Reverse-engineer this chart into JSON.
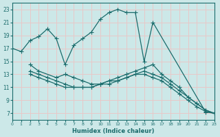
{
  "xlabel": "Humidex (Indice chaleur)",
  "xlim": [
    0,
    23
  ],
  "ylim": [
    6,
    24
  ],
  "yticks": [
    7,
    9,
    11,
    13,
    15,
    17,
    19,
    21,
    23
  ],
  "xticks": [
    0,
    1,
    2,
    3,
    4,
    5,
    6,
    7,
    8,
    9,
    10,
    11,
    12,
    13,
    14,
    15,
    16,
    17,
    18,
    19,
    20,
    21,
    22,
    23
  ],
  "background_color": "#cce8e8",
  "line_color": "#1a6b6b",
  "grid_color": "#e8c8c8",
  "curve1": {
    "x": [
      0,
      1,
      2,
      3,
      4,
      5,
      6,
      7,
      8,
      9,
      10,
      11,
      12,
      13,
      14,
      15,
      16,
      22,
      23
    ],
    "y": [
      17.0,
      16.5,
      18.2,
      18.8,
      20.0,
      18.5,
      14.5,
      17.5,
      18.5,
      19.5,
      21.5,
      22.5,
      23.0,
      22.5,
      22.5,
      15.0,
      21.0,
      7.2,
      7.0
    ]
  },
  "curve2": {
    "x": [
      2,
      3,
      5,
      6,
      7,
      8,
      9,
      10,
      11,
      12,
      13,
      14,
      15,
      16,
      17,
      18,
      19,
      20,
      21,
      22,
      23
    ],
    "y": [
      14.5,
      13.5,
      12.5,
      13.0,
      12.5,
      12.0,
      11.5,
      11.5,
      12.0,
      12.5,
      13.0,
      13.5,
      14.0,
      14.5,
      13.0,
      12.0,
      11.0,
      9.5,
      8.5,
      7.5,
      7.0
    ]
  },
  "curve3": {
    "x": [
      2,
      3,
      4,
      5,
      6,
      7,
      8,
      9,
      10,
      11,
      12,
      13,
      14,
      15,
      16,
      17,
      18,
      19,
      20,
      21,
      22,
      23
    ],
    "y": [
      13.5,
      13.0,
      12.5,
      12.0,
      11.5,
      11.0,
      11.0,
      11.0,
      11.5,
      12.0,
      12.0,
      12.5,
      13.0,
      13.5,
      13.0,
      12.5,
      11.5,
      10.5,
      9.5,
      8.5,
      7.5,
      7.0
    ]
  },
  "curve4": {
    "x": [
      2,
      3,
      4,
      5,
      6,
      7,
      8,
      9,
      10,
      11,
      12,
      13,
      14,
      15,
      16,
      17,
      18,
      19,
      20,
      21,
      22,
      23
    ],
    "y": [
      13.0,
      12.5,
      12.0,
      11.5,
      11.0,
      11.0,
      11.0,
      11.0,
      11.5,
      11.5,
      12.0,
      12.5,
      13.0,
      13.0,
      12.5,
      12.0,
      11.0,
      10.0,
      9.0,
      8.0,
      7.3,
      7.0
    ]
  }
}
